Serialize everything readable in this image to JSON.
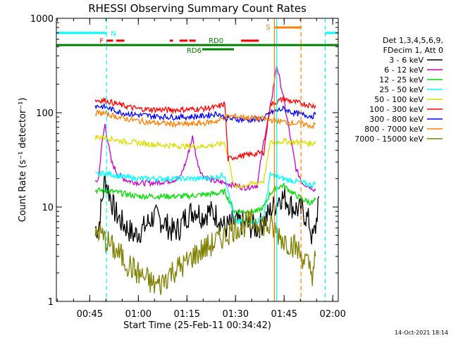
{
  "chart_data": {
    "type": "line",
    "title": "RHESSI Observing Summary Count Rates",
    "xlabel": "Start Time (25-Feb-11 00:34:42)",
    "ylabel": "Count Rate (s⁻¹ detector⁻¹)",
    "x_unit": "minutes since 00:34:42",
    "xlim": [
      0,
      87
    ],
    "ylim": [
      1,
      1000
    ],
    "y_scale": "log",
    "x_ticks": [
      {
        "value": 10.3,
        "label": "00:45"
      },
      {
        "value": 25.3,
        "label": "01:00"
      },
      {
        "value": 40.3,
        "label": "01:15"
      },
      {
        "value": 55.3,
        "label": "01:30"
      },
      {
        "value": 70.3,
        "label": "01:45"
      },
      {
        "value": 85.3,
        "label": "02:00"
      }
    ],
    "y_ticks": [
      {
        "value": 1,
        "label": "1"
      },
      {
        "value": 10,
        "label": "10"
      },
      {
        "value": 100,
        "label": "100"
      },
      {
        "value": 1000,
        "label": "1000"
      }
    ],
    "legend": {
      "placement": "right",
      "header": [
        "Det 1,3,4,5,6,9,",
        "FDecim 1, Att 0"
      ]
    },
    "series": [
      {
        "name": "3 - 6 keV",
        "color": "#000000",
        "x": [
          12,
          13,
          15,
          18,
          20,
          24,
          27,
          30,
          33,
          36,
          38,
          40,
          43,
          45,
          47,
          50,
          52,
          55,
          58,
          62,
          64,
          66,
          67,
          69,
          71,
          73,
          76,
          78,
          79,
          80,
          81
        ],
        "y": [
          6,
          6,
          20,
          9,
          7,
          5,
          6,
          8,
          7,
          5.5,
          6,
          8,
          9.5,
          8,
          9,
          8,
          6,
          7,
          6.5,
          6,
          7,
          9,
          10,
          13,
          12,
          10,
          9,
          7,
          4.5,
          6,
          13
        ]
      },
      {
        "name": "6 - 12 keV",
        "color": "#cc00cc",
        "x": [
          12,
          13,
          14,
          15,
          17,
          19,
          22,
          26,
          30,
          35,
          38,
          40,
          42,
          43.5,
          45,
          48,
          52,
          55,
          58,
          62,
          64,
          66,
          68,
          70,
          72,
          74,
          76,
          79,
          80
        ],
        "y": [
          18,
          20,
          45,
          75,
          30,
          22,
          19,
          18,
          18,
          19,
          20,
          30,
          55,
          30,
          22,
          19,
          18,
          17,
          16,
          17,
          50,
          110,
          320,
          150,
          60,
          25,
          18,
          16,
          15
        ]
      },
      {
        "name": "12 - 25 keV",
        "color": "#00dd00",
        "x": [
          12,
          15,
          20,
          25,
          30,
          35,
          40,
          45,
          50,
          52,
          55,
          58,
          62,
          64,
          66,
          68,
          70,
          73,
          76,
          79,
          80
        ],
        "y": [
          15,
          15,
          14,
          13,
          13,
          13,
          13,
          13.5,
          14,
          14.5,
          9,
          9,
          9,
          10,
          14,
          16,
          17,
          14,
          12,
          11,
          12
        ]
      },
      {
        "name": "25 - 50 keV",
        "color": "#00ffff",
        "x": [
          12,
          15,
          20,
          25,
          30,
          35,
          40,
          45,
          50,
          52,
          55,
          58,
          62,
          64,
          66,
          70,
          73,
          76,
          79,
          80
        ],
        "y": [
          22,
          23,
          21,
          20,
          20,
          20,
          20,
          20,
          21,
          22,
          7,
          7,
          7,
          8,
          22,
          20,
          19,
          18,
          17,
          18
        ]
      },
      {
        "name": "50 - 100 keV",
        "color": "#dddd00",
        "x": [
          12,
          15,
          20,
          25,
          30,
          35,
          40,
          45,
          50,
          52,
          55,
          58,
          62,
          64,
          66,
          70,
          73,
          76,
          79,
          80
        ],
        "y": [
          55,
          55,
          50,
          48,
          46,
          45,
          44,
          44,
          46,
          48,
          16,
          17,
          18,
          19,
          48,
          50,
          49,
          48,
          47,
          50
        ]
      },
      {
        "name": "100 - 300 keV",
        "color": "#ff0000",
        "x": [
          12,
          15,
          20,
          25,
          30,
          35,
          40,
          45,
          50,
          52,
          53,
          55,
          60,
          64,
          66,
          70,
          73,
          76,
          79,
          80
        ],
        "y": [
          135,
          135,
          120,
          110,
          108,
          107,
          108,
          110,
          115,
          125,
          32,
          34,
          36,
          38,
          120,
          140,
          130,
          125,
          118,
          120
        ]
      },
      {
        "name": "300 - 800 keV",
        "color": "#0000ff",
        "x": [
          12,
          15,
          20,
          25,
          30,
          35,
          40,
          45,
          50,
          52,
          55,
          60,
          64,
          66,
          70,
          73,
          76,
          79,
          80
        ],
        "y": [
          118,
          115,
          100,
          95,
          92,
          90,
          90,
          92,
          98,
          88,
          85,
          84,
          86,
          100,
          110,
          100,
          95,
          92,
          95
        ]
      },
      {
        "name": "800 - 7000 keV",
        "color": "#ff8000",
        "x": [
          12,
          15,
          20,
          25,
          30,
          35,
          40,
          45,
          50,
          52,
          55,
          60,
          64,
          66,
          70,
          73,
          76,
          79,
          80
        ],
        "y": [
          100,
          98,
          88,
          82,
          78,
          76,
          75,
          77,
          82,
          90,
          92,
          88,
          86,
          84,
          80,
          78,
          76,
          72,
          75
        ]
      },
      {
        "name": "7000 - 15000 keV",
        "color": "#808000",
        "x": [
          12,
          13,
          15,
          18,
          20,
          22,
          25,
          28,
          30,
          32,
          35,
          38,
          40,
          42,
          45,
          48,
          50,
          52,
          55,
          58,
          62,
          64,
          66,
          68,
          70,
          73,
          76,
          79,
          80
        ],
        "y": [
          5,
          5.5,
          4.5,
          3.5,
          3,
          2.5,
          2,
          1.7,
          1.5,
          1.5,
          2,
          2.3,
          2.5,
          3,
          3.5,
          4,
          4.5,
          5,
          6,
          6.5,
          7,
          6.5,
          6,
          5.5,
          4.5,
          4,
          3,
          2,
          3
        ]
      }
    ],
    "flags": [
      {
        "label": "N",
        "color": "#00ffff",
        "level": 700,
        "segments": [
          [
            0,
            15.5
          ],
          [
            83,
            87
          ]
        ]
      },
      {
        "label": "F",
        "color": "#ff0000",
        "level": 580,
        "segments": [
          [
            15.5,
            17.5
          ],
          [
            18.5,
            21
          ],
          [
            35,
            36
          ],
          [
            38,
            40.5
          ],
          [
            41,
            43
          ],
          [
            57,
            62.5
          ]
        ]
      },
      {
        "label": "S",
        "color": "#ff8000",
        "level": 800,
        "segments": [
          [
            67.3,
            75.5
          ]
        ]
      },
      {
        "label": "RD0",
        "color": "#008000",
        "level": 520,
        "segments": [
          [
            0,
            87
          ]
        ]
      },
      {
        "label": "RD6",
        "color": "#008000",
        "level": 470,
        "segments": [
          [
            45,
            54.8
          ]
        ]
      }
    ],
    "vertical_lines": [
      {
        "x": 15.5,
        "color": "#00ffff",
        "style": "dashed"
      },
      {
        "x": 67.3,
        "color": "#ff8000",
        "style": "solid"
      },
      {
        "x": 68,
        "color": "#00ffff",
        "style": "solid"
      },
      {
        "x": 75.5,
        "color": "#ff8000",
        "style": "dashed"
      },
      {
        "x": 83,
        "color": "#00ffff",
        "style": "dashed"
      }
    ]
  },
  "footer": {
    "timestamp": "14-Oct-2021 18:14"
  }
}
